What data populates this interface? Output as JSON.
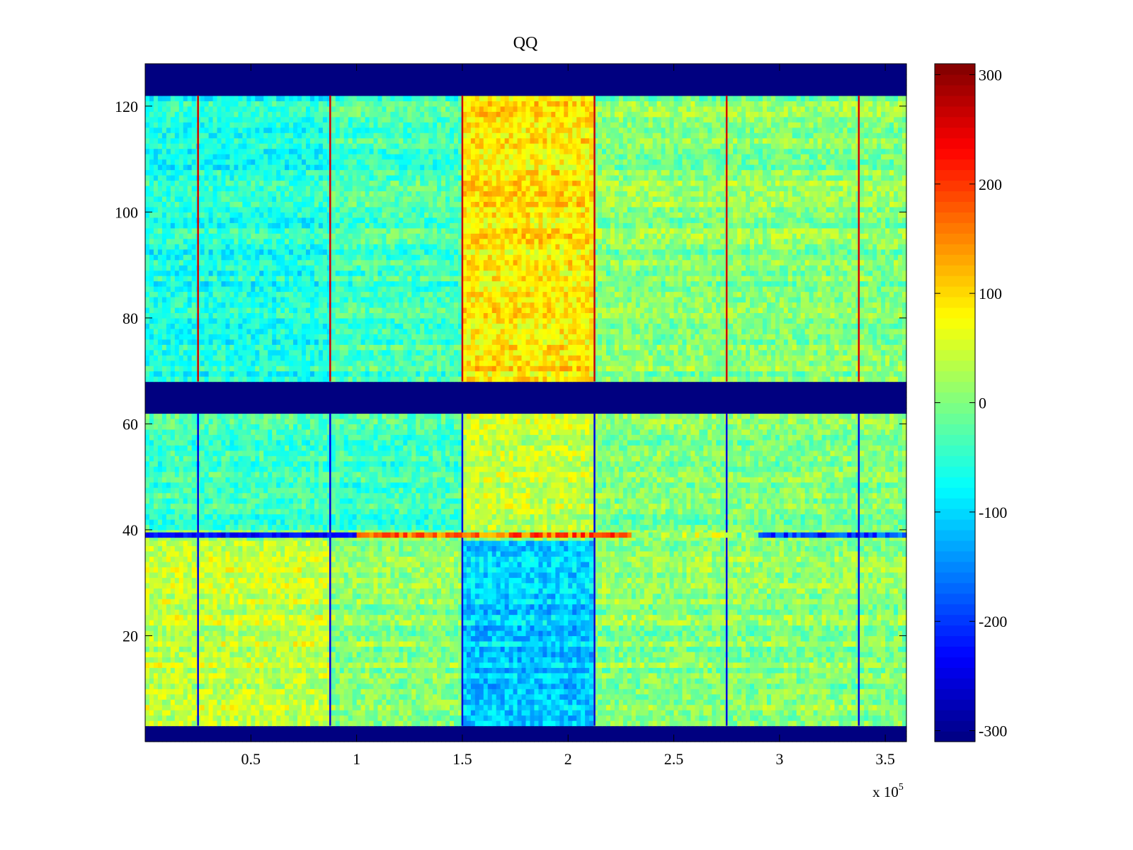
{
  "chart_data": {
    "type": "heatmap",
    "title": "QQ",
    "xlabel": "",
    "ylabel": "",
    "x_range": [
      0,
      3.6
    ],
    "y_range": [
      0,
      128
    ],
    "x_ticks": [
      0.5,
      1,
      1.5,
      2,
      2.5,
      3,
      3.5
    ],
    "x_tick_labels": [
      "0.5",
      "1",
      "1.5",
      "2",
      "2.5",
      "3",
      "3.5"
    ],
    "x_multiplier": {
      "base": "x 10",
      "exponent": "5"
    },
    "y_ticks": [
      20,
      40,
      60,
      80,
      100,
      120
    ],
    "y_tick_labels": [
      "20",
      "40",
      "60",
      "80",
      "100",
      "120"
    ],
    "colorbar": {
      "range": [
        -310,
        310
      ],
      "ticks": [
        -300,
        -200,
        -100,
        0,
        100,
        200,
        300
      ],
      "tick_labels": [
        "-300",
        "-200",
        "-100",
        "0",
        "100",
        "200",
        "300"
      ],
      "colormap": "jet"
    },
    "grid": false,
    "masked_y_bands": [
      [
        0,
        3
      ],
      [
        62,
        68
      ],
      [
        122,
        128
      ]
    ],
    "mask_value": -310,
    "vertical_boundaries_x": [
      0.25,
      0.875,
      1.5,
      2.125,
      2.75,
      3.375
    ],
    "horizontal_stripe_y": 39,
    "regions": [
      {
        "y": [
          68,
          122
        ],
        "x": [
          0,
          0.875
        ],
        "mean_value": -60
      },
      {
        "y": [
          68,
          122
        ],
        "x": [
          0.875,
          1.5
        ],
        "mean_value": -35
      },
      {
        "y": [
          68,
          122
        ],
        "x": [
          1.5,
          2.125
        ],
        "mean_value": 90
      },
      {
        "y": [
          68,
          122
        ],
        "x": [
          2.125,
          3.6
        ],
        "mean_value": 5
      },
      {
        "y": [
          40,
          62
        ],
        "x": [
          0,
          1.5
        ],
        "mean_value": -40
      },
      {
        "y": [
          40,
          62
        ],
        "x": [
          1.5,
          2.125
        ],
        "mean_value": 40
      },
      {
        "y": [
          40,
          62
        ],
        "x": [
          2.125,
          3.6
        ],
        "mean_value": 0
      },
      {
        "y": [
          3,
          38
        ],
        "x": [
          0,
          0.875
        ],
        "mean_value": 40
      },
      {
        "y": [
          3,
          38
        ],
        "x": [
          0.875,
          1.5
        ],
        "mean_value": 5
      },
      {
        "y": [
          3,
          38
        ],
        "x": [
          1.5,
          2.125
        ],
        "mean_value": -110
      },
      {
        "y": [
          3,
          38
        ],
        "x": [
          2.125,
          3.6
        ],
        "mean_value": 5
      }
    ]
  }
}
